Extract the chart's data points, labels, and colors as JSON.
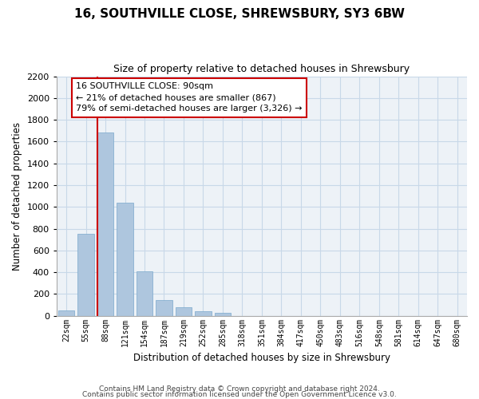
{
  "title": "16, SOUTHVILLE CLOSE, SHREWSBURY, SY3 6BW",
  "subtitle": "Size of property relative to detached houses in Shrewsbury",
  "xlabel": "Distribution of detached houses by size in Shrewsbury",
  "ylabel": "Number of detached properties",
  "bar_labels": [
    "22sqm",
    "55sqm",
    "88sqm",
    "121sqm",
    "154sqm",
    "187sqm",
    "219sqm",
    "252sqm",
    "285sqm",
    "318sqm",
    "351sqm",
    "384sqm",
    "417sqm",
    "450sqm",
    "483sqm",
    "516sqm",
    "548sqm",
    "581sqm",
    "614sqm",
    "647sqm",
    "680sqm"
  ],
  "bar_values": [
    50,
    750,
    1680,
    1040,
    405,
    145,
    80,
    40,
    25,
    0,
    0,
    0,
    0,
    0,
    0,
    0,
    0,
    0,
    0,
    0,
    0
  ],
  "bar_color": "#aec6de",
  "vline_color": "#cc0000",
  "ylim": [
    0,
    2200
  ],
  "yticks": [
    0,
    200,
    400,
    600,
    800,
    1000,
    1200,
    1400,
    1600,
    1800,
    2000,
    2200
  ],
  "annotation_title": "16 SOUTHVILLE CLOSE: 90sqm",
  "annotation_line1": "← 21% of detached houses are smaller (867)",
  "annotation_line2": "79% of semi-detached houses are larger (3,326) →",
  "annotation_box_color": "#ffffff",
  "annotation_box_edge": "#cc0000",
  "footer_line1": "Contains HM Land Registry data © Crown copyright and database right 2024.",
  "footer_line2": "Contains public sector information licensed under the Open Government Licence v3.0.",
  "grid_color": "#c8d8e8",
  "background_color": "#edf2f7"
}
